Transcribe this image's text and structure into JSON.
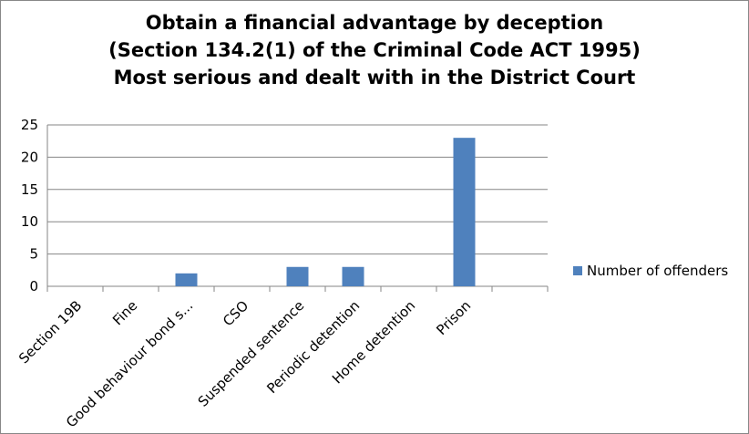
{
  "chart_data": {
    "type": "bar",
    "title_lines": [
      "Obtain a financial advantage by deception",
      "(Section 134.2(1) of the Criminal Code ACT 1995)",
      "Most serious and dealt with in the District Court"
    ],
    "categories": [
      "Section 19B",
      "Fine",
      "Good behaviour bond s...",
      "CSO",
      "Suspended sentence",
      "Periodic detention",
      "Home detention",
      "Prison",
      ""
    ],
    "series": [
      {
        "name": "Number of offenders",
        "values": [
          0,
          0,
          2,
          0,
          3,
          3,
          0,
          23,
          0
        ],
        "color": "#4f81bd"
      }
    ],
    "xlabel": "",
    "ylabel": "",
    "ylim": [
      0,
      25
    ],
    "yticks": [
      0,
      5,
      10,
      15,
      20,
      25
    ],
    "grid": true,
    "legend": "right"
  }
}
